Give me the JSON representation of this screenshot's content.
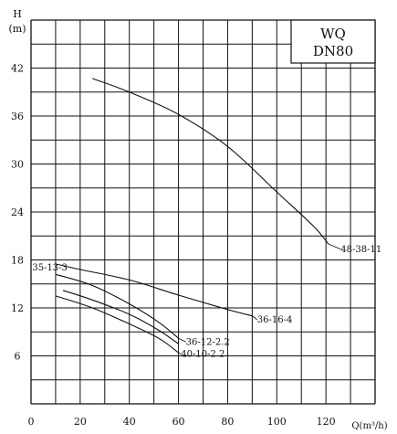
{
  "chart_data": {
    "type": "line",
    "title_box": {
      "line1": "WQ",
      "line2": "DN80"
    },
    "y_axis": {
      "label_line1": "H",
      "label_line2": "(m)",
      "range": [
        0,
        48
      ],
      "ticks": [
        6,
        12,
        18,
        24,
        30,
        36,
        42
      ]
    },
    "x_axis": {
      "label": "Q(m³/h)",
      "range": [
        0,
        140
      ],
      "ticks": [
        0,
        20,
        40,
        60,
        80,
        100,
        120
      ]
    },
    "grid": true,
    "series": [
      {
        "name": "48-38-11",
        "points": [
          [
            25,
            40.7
          ],
          [
            40,
            39.0
          ],
          [
            60,
            36.2
          ],
          [
            80,
            32.2
          ],
          [
            100,
            26.5
          ],
          [
            115,
            22.2
          ],
          [
            121,
            20.0
          ]
        ]
      },
      {
        "name": "35-13-3",
        "points": [
          [
            10,
            17.5
          ],
          [
            20,
            16.8
          ],
          [
            40,
            15.5
          ],
          [
            60,
            13.6
          ],
          [
            80,
            11.8
          ],
          [
            90,
            11.0
          ]
        ]
      },
      {
        "name": "36-16-4",
        "points": [
          [
            10,
            16.2
          ],
          [
            25,
            14.8
          ],
          [
            40,
            12.5
          ],
          [
            52,
            10.2
          ],
          [
            60,
            8.2
          ]
        ]
      },
      {
        "name": "36-12-2.2",
        "points": [
          [
            13,
            14.2
          ],
          [
            25,
            13.0
          ],
          [
            40,
            11.2
          ],
          [
            52,
            9.2
          ],
          [
            60,
            7.5
          ]
        ]
      },
      {
        "name": "40-10-2.2",
        "points": [
          [
            10,
            13.5
          ],
          [
            25,
            12.0
          ],
          [
            40,
            10.0
          ],
          [
            52,
            8.2
          ],
          [
            60,
            6.4
          ]
        ]
      }
    ],
    "curve_labels": [
      {
        "text": "48-38-11",
        "x": 126,
        "y": 19.0,
        "anchor": [
          121,
          20.0
        ]
      },
      {
        "text": "35-13-3",
        "x": 0.5,
        "y": 16.7,
        "anchor": null
      },
      {
        "text": "36-16-4",
        "x": 92,
        "y": 10.2,
        "anchor": [
          90,
          11.0
        ]
      },
      {
        "text": "36-12-2.2",
        "x": 63,
        "y": 7.4,
        "anchor": [
          60,
          8.2
        ]
      },
      {
        "text": "40-10-2.2",
        "x": 61,
        "y": 5.9,
        "anchor": [
          60,
          6.4
        ]
      }
    ]
  }
}
